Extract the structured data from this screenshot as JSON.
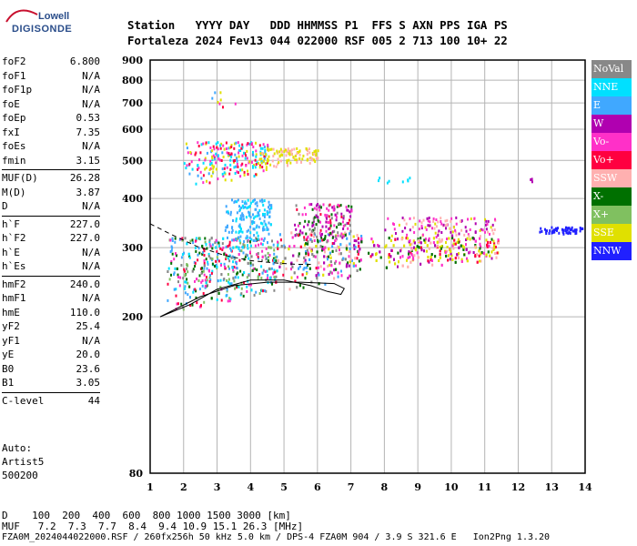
{
  "logo": {
    "line1": "Lowell",
    "line2": "DIGISONDE"
  },
  "header": {
    "line1": "Station   YYYY DAY   DDD HHMMSS P1  FFS S AXN PPS IGA PS",
    "line2": "Fortaleza 2024 Fev13 044 022000 RSF 005 2 713 100 10+ 22"
  },
  "params": [
    {
      "k": "foF2",
      "v": "6.800"
    },
    {
      "k": "foF1",
      "v": "N/A"
    },
    {
      "k": "foF1p",
      "v": "N/A"
    },
    {
      "k": "foE",
      "v": "N/A"
    },
    {
      "k": "foEp",
      "v": "0.53"
    },
    {
      "k": "fxI",
      "v": "7.35"
    },
    {
      "k": "foEs",
      "v": "N/A"
    },
    {
      "k": "fmin",
      "v": "3.15"
    },
    {
      "k": "MUF(D)",
      "v": "26.28"
    },
    {
      "k": "M(D)",
      "v": "3.87"
    },
    {
      "k": "D",
      "v": "N/A"
    },
    {
      "k": "h`F",
      "v": "227.0"
    },
    {
      "k": "h`F2",
      "v": "227.0"
    },
    {
      "k": "h`E",
      "v": "N/A"
    },
    {
      "k": "h`Es",
      "v": "N/A"
    },
    {
      "k": "hmF2",
      "v": "240.0"
    },
    {
      "k": "hmF1",
      "v": "N/A"
    },
    {
      "k": "hmE",
      "v": "110.0"
    },
    {
      "k": "yF2",
      "v": "25.4"
    },
    {
      "k": "yF1",
      "v": "N/A"
    },
    {
      "k": "yE",
      "v": "20.0"
    },
    {
      "k": "B0",
      "v": "23.6"
    },
    {
      "k": "B1",
      "v": "3.05"
    },
    {
      "k": "C-level",
      "v": "44"
    }
  ],
  "auto": {
    "l1": "Auto:",
    "l2": "Artist5",
    "l3": "500200"
  },
  "legend": [
    {
      "label": "NoVal",
      "color": "#888888"
    },
    {
      "label": "NNE",
      "color": "#00e0ff"
    },
    {
      "label": "E",
      "color": "#40a8ff"
    },
    {
      "label": "W",
      "color": "#b000b0"
    },
    {
      "label": "Vo-",
      "color": "#ff30c8"
    },
    {
      "label": "Vo+",
      "color": "#ff0040"
    },
    {
      "label": "SSW",
      "color": "#ffb0b0"
    },
    {
      "label": "X-",
      "color": "#007000"
    },
    {
      "label": "X+",
      "color": "#80c060"
    },
    {
      "label": "SSE",
      "color": "#e0e000"
    },
    {
      "label": "NNW",
      "color": "#2020ff"
    }
  ],
  "bottom": {
    "d_line": "D    100  200  400  600  800 1000 1500 3000 [km]",
    "muf_line": "MUF   7.2  7.3  7.7  8.4  9.4 10.9 15.1 26.3 [MHz]"
  },
  "footer": "FZA0M_2024044022000.RSF / 260fx256h 50 kHz 5.0 km / DPS-4 FZA0M 904 / 3.9 S 321.6 E   Ion2Png 1.3.20",
  "chart_data": {
    "type": "scatter",
    "xlim": [
      1,
      14
    ],
    "ylim": [
      80,
      900
    ],
    "y_scale": "log",
    "grid": true,
    "x_ticks": [
      "1",
      "2",
      "3",
      "4",
      "5",
      "6",
      "7",
      "8",
      "9",
      "10",
      "11",
      "12",
      "13",
      "14"
    ],
    "y_ticks": [
      {
        "label": "900",
        "v": 900
      },
      {
        "label": "800",
        "v": 800
      },
      {
        "label": "700",
        "v": 700
      },
      {
        "label": "600",
        "v": 600
      },
      {
        "label": "500",
        "v": 500
      },
      {
        "label": "400",
        "v": 400
      },
      {
        "label": "300",
        "v": 300
      },
      {
        "label": "200",
        "v": 200
      },
      {
        "label": "80",
        "v": 80
      }
    ],
    "clusters": [
      {
        "x": [
          1.5,
          4.8
        ],
        "y": [
          205,
          320
        ],
        "n": 500,
        "colors": [
          "#40a8ff",
          "#40a8ff",
          "#00e0ff",
          "#ff0040",
          "#ff30c8",
          "#007000",
          "#888888",
          "#80c060"
        ]
      },
      {
        "x": [
          3.2,
          4.6
        ],
        "y": [
          290,
          400
        ],
        "n": 160,
        "colors": [
          "#40a8ff",
          "#00e0ff",
          "#40a8ff"
        ]
      },
      {
        "x": [
          4.8,
          7.3
        ],
        "y": [
          230,
          330
        ],
        "n": 420,
        "colors": [
          "#ff0040",
          "#e0e000",
          "#ff30c8",
          "#007000",
          "#40a8ff",
          "#888888",
          "#ffb0b0",
          "#b000b0"
        ]
      },
      {
        "x": [
          5.3,
          7.0
        ],
        "y": [
          300,
          390
        ],
        "n": 140,
        "colors": [
          "#ff0040",
          "#ff30c8",
          "#888888",
          "#007000",
          "#b000b0"
        ]
      },
      {
        "x": [
          7.5,
          11.4
        ],
        "y": [
          265,
          320
        ],
        "n": 480,
        "colors": [
          "#e0e000",
          "#e0e000",
          "#e0e000",
          "#ffb0b0",
          "#ff30c8",
          "#b000b0",
          "#007000",
          "#ff0040"
        ]
      },
      {
        "x": [
          8.0,
          11.3
        ],
        "y": [
          310,
          360
        ],
        "n": 120,
        "colors": [
          "#e0e000",
          "#ffb0b0",
          "#ff30c8",
          "#b000b0"
        ]
      },
      {
        "x": [
          12.6,
          13.9
        ],
        "y": [
          325,
          340
        ],
        "n": 60,
        "colors": [
          "#2020ff"
        ]
      },
      {
        "x": [
          2.0,
          4.5
        ],
        "y": [
          430,
          560
        ],
        "n": 220,
        "colors": [
          "#40a8ff",
          "#ff0040",
          "#e0e000",
          "#ff30c8",
          "#00e0ff"
        ]
      },
      {
        "x": [
          4.2,
          6.0
        ],
        "y": [
          480,
          540
        ],
        "n": 110,
        "colors": [
          "#e0e000",
          "#ffb0b0",
          "#e0e000"
        ]
      },
      {
        "x": [
          7.8,
          9.0
        ],
        "y": [
          440,
          455
        ],
        "n": 8,
        "colors": [
          "#00e0ff"
        ]
      },
      {
        "x": [
          12.3,
          12.5
        ],
        "y": [
          440,
          460
        ],
        "n": 3,
        "colors": [
          "#b000b0"
        ]
      },
      {
        "x": [
          2.6,
          3.8
        ],
        "y": [
          650,
          750
        ],
        "n": 8,
        "colors": [
          "#ff0040",
          "#40a8ff",
          "#ff30c8",
          "#e0e000"
        ]
      }
    ],
    "profile_curves": [
      {
        "style": "solid",
        "x": [
          1.3,
          2.2,
          3.0,
          4.0,
          5.0,
          5.8,
          6.3,
          6.7,
          6.8,
          6.5,
          5.5,
          4.5,
          3.5,
          2.5,
          1.3
        ],
        "y": [
          200,
          215,
          235,
          248,
          248,
          240,
          232,
          228,
          236,
          243,
          245,
          245,
          240,
          225,
          200
        ]
      },
      {
        "style": "dashed",
        "x": [
          1.0,
          1.6,
          2.4,
          3.2,
          4.0,
          4.8,
          5.4,
          5.8
        ],
        "y": [
          345,
          325,
          302,
          287,
          278,
          274,
          272,
          272
        ]
      }
    ]
  }
}
